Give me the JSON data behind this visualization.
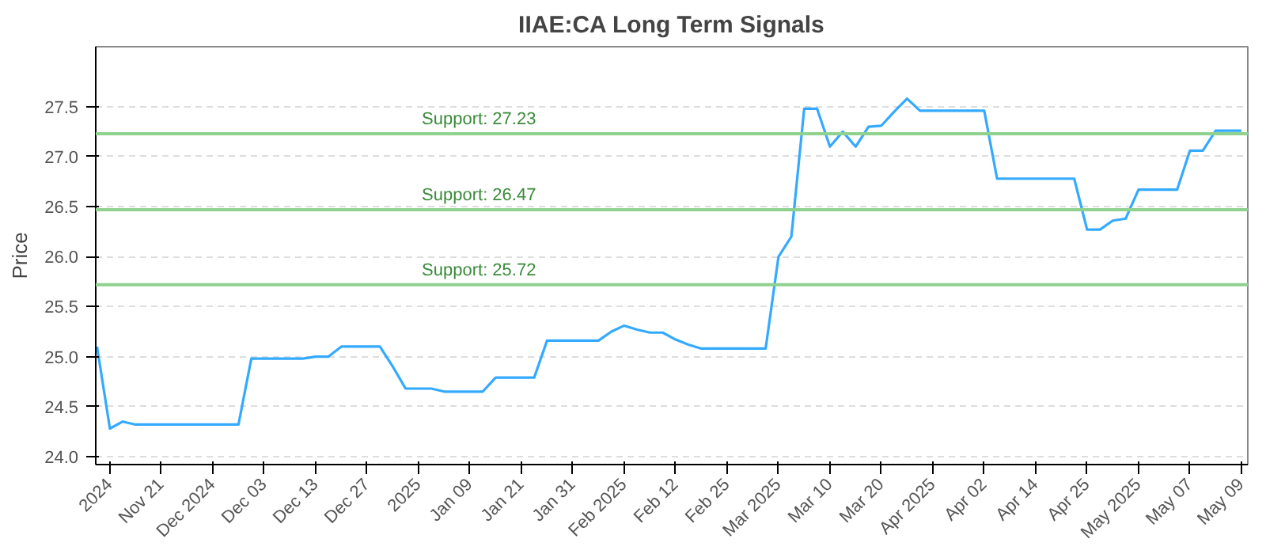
{
  "chart_data": {
    "type": "line",
    "title": "IIAE:CA Long Term Signals",
    "ylabel": "Price",
    "categories": [
      null,
      "2024",
      null,
      null,
      null,
      "Nov 21",
      null,
      null,
      null,
      "Dec 2024",
      null,
      null,
      null,
      "Dec 03",
      null,
      null,
      null,
      "Dec 13",
      null,
      null,
      null,
      "Dec 27",
      null,
      null,
      null,
      "2025",
      null,
      null,
      null,
      "Jan 09",
      null,
      null,
      null,
      "Jan 21",
      null,
      null,
      null,
      "Jan 31",
      null,
      null,
      null,
      "Feb 2025",
      null,
      null,
      null,
      "Feb 12",
      null,
      null,
      null,
      "Feb 25",
      null,
      null,
      null,
      "Mar 2025",
      null,
      null,
      null,
      "Mar 10",
      null,
      null,
      null,
      "Mar 20",
      null,
      null,
      null,
      "Apr 2025",
      null,
      null,
      null,
      "Apr 02",
      null,
      null,
      null,
      "Apr 14",
      null,
      null,
      null,
      "Apr 25",
      null,
      null,
      null,
      "May 2025",
      null,
      null,
      null,
      "May 07",
      null,
      null,
      null,
      "May 09"
    ],
    "series": [
      {
        "color": "#33aaff",
        "values": [
          25.1,
          24.28,
          24.35,
          24.32,
          24.32,
          24.32,
          24.32,
          24.32,
          24.32,
          24.32,
          24.32,
          24.32,
          24.98,
          24.98,
          24.98,
          24.98,
          24.98,
          25.0,
          25.0,
          25.1,
          25.1,
          25.1,
          25.1,
          24.9,
          24.68,
          24.68,
          24.68,
          24.65,
          24.65,
          24.65,
          24.65,
          24.79,
          24.79,
          24.79,
          24.79,
          25.16,
          25.16,
          25.16,
          25.16,
          25.16,
          25.25,
          25.31,
          25.27,
          25.24,
          25.24,
          25.17,
          25.12,
          25.08,
          25.08,
          25.08,
          25.08,
          25.08,
          25.08,
          26.0,
          26.2,
          27.48,
          27.48,
          27.1,
          27.25,
          27.1,
          27.3,
          27.31,
          27.45,
          27.58,
          27.46,
          27.46,
          27.46,
          27.46,
          27.46,
          27.46,
          26.78,
          26.78,
          26.78,
          26.78,
          26.78,
          26.78,
          26.78,
          26.27,
          26.27,
          26.36,
          26.38,
          26.67,
          26.67,
          26.67,
          26.67,
          27.06,
          27.06,
          27.26,
          27.26,
          27.26
        ]
      }
    ],
    "ylim": [
      23.92,
      28.1
    ],
    "yticks": [
      {
        "value": 24,
        "label": "24.0"
      },
      {
        "value": 24.5,
        "label": "24.5"
      },
      {
        "value": 25,
        "label": "25.0"
      },
      {
        "value": 25.5,
        "label": "25.5"
      },
      {
        "value": 26,
        "label": "26.0"
      },
      {
        "value": 26.5,
        "label": "26.5"
      },
      {
        "value": 27,
        "label": "27.0"
      },
      {
        "value": 27.5,
        "label": "27.5"
      }
    ],
    "ref_lines": [
      {
        "axis": "y",
        "value": 27.23,
        "label": "Support: 27.23",
        "color": "#8fd18f"
      },
      {
        "axis": "y",
        "value": 26.47,
        "label": "Support: 26.47",
        "color": "#8fd18f"
      },
      {
        "axis": "y",
        "value": 25.72,
        "label": "Support: 25.72",
        "color": "#8fd18f"
      }
    ],
    "grid": "y",
    "marker": "none",
    "line_style": "solid"
  }
}
